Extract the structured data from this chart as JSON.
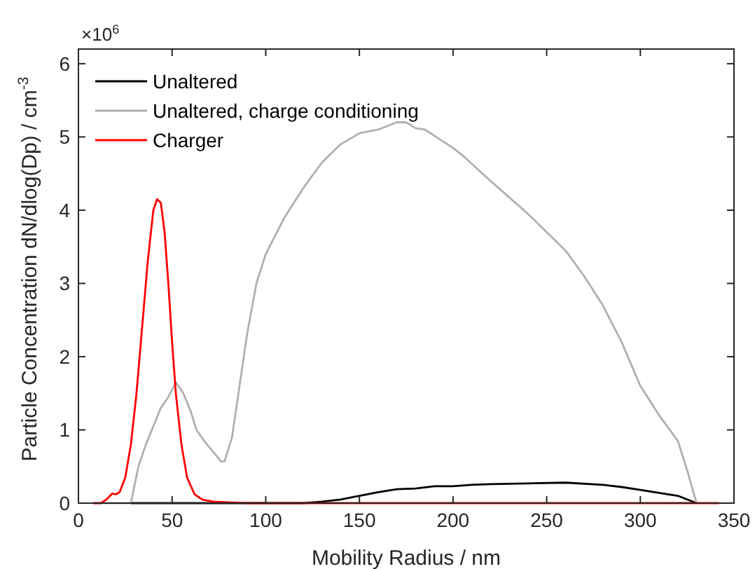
{
  "chart_data": {
    "type": "line",
    "xlabel": "Mobility Radius / nm",
    "ylabel": "Particle Concentration dN/dlog(Dp) / cm$^{-3}$",
    "annotations": [
      "×10$^{6}$"
    ],
    "xlim": [
      0,
      350
    ],
    "xticks": [
      0,
      50,
      100,
      150,
      200,
      250,
      300,
      350
    ],
    "ylim": [
      0,
      6.2
    ],
    "yticks": [
      0,
      1,
      2,
      3,
      4,
      5,
      6
    ],
    "grid": false,
    "legend": "top left",
    "line_style": "solid",
    "marker": "none",
    "series": [
      {
        "name": "Unaltered",
        "color": "#000000",
        "x": [
          28,
          60,
          100,
          120,
          130,
          140,
          150,
          160,
          170,
          180,
          190,
          200,
          210,
          220,
          240,
          260,
          280,
          290,
          300,
          310,
          320,
          325,
          330
        ],
        "values": [
          0,
          0,
          0,
          0,
          0.02,
          0.05,
          0.1,
          0.15,
          0.19,
          0.2,
          0.23,
          0.23,
          0.25,
          0.26,
          0.27,
          0.28,
          0.25,
          0.22,
          0.18,
          0.14,
          0.1,
          0.05,
          0
        ]
      },
      {
        "name": "Unaltered, charge conditioning",
        "color": "#b0b0b0",
        "x": [
          8,
          28,
          32,
          36,
          40,
          44,
          48,
          52,
          56,
          60,
          63,
          68,
          72,
          76,
          78,
          82,
          86,
          90,
          95,
          100,
          110,
          120,
          130,
          140,
          150,
          160,
          165,
          170,
          175,
          180,
          185,
          200,
          205,
          220,
          240,
          260,
          270,
          280,
          290,
          300,
          310,
          320,
          325,
          330
        ],
        "values": [
          0,
          0,
          0.5,
          0.8,
          1.05,
          1.3,
          1.45,
          1.65,
          1.5,
          1.25,
          1.0,
          0.82,
          0.7,
          0.57,
          0.57,
          0.9,
          1.6,
          2.3,
          3.0,
          3.4,
          3.9,
          4.3,
          4.65,
          4.9,
          5.05,
          5.1,
          5.15,
          5.2,
          5.2,
          5.12,
          5.1,
          4.85,
          4.75,
          4.4,
          3.95,
          3.45,
          3.1,
          2.7,
          2.2,
          1.6,
          1.2,
          0.85,
          0.45,
          0
        ]
      },
      {
        "name": "Charger",
        "color": "#ff0000",
        "x": [
          8,
          12,
          15,
          18,
          20,
          22,
          25,
          28,
          31,
          34,
          37,
          40,
          42,
          44,
          46,
          48,
          50,
          52,
          55,
          58,
          62,
          66,
          72,
          80,
          90,
          342
        ],
        "values": [
          0,
          0,
          0.05,
          0.13,
          0.12,
          0.15,
          0.35,
          0.8,
          1.5,
          2.4,
          3.3,
          4.0,
          4.15,
          4.1,
          3.7,
          3.0,
          2.2,
          1.5,
          0.8,
          0.35,
          0.12,
          0.05,
          0.02,
          0.01,
          0,
          0
        ]
      }
    ]
  }
}
